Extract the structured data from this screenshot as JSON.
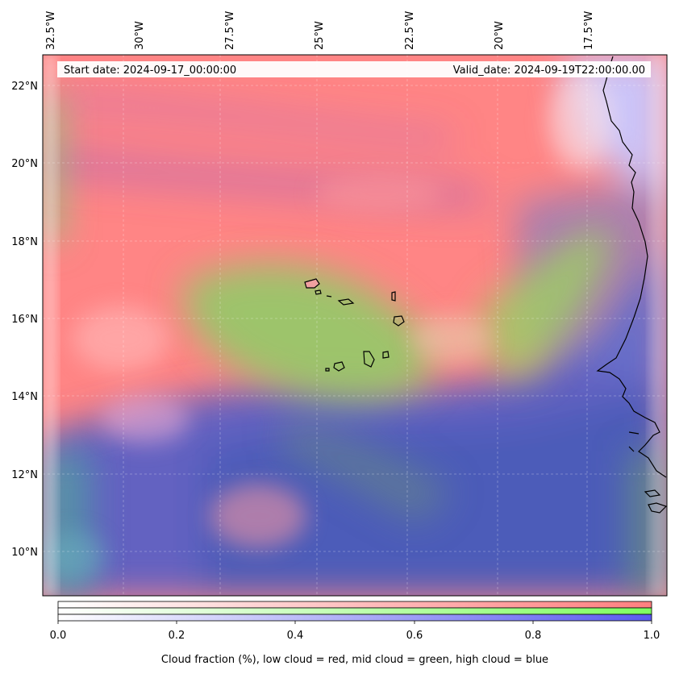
{
  "map": {
    "start_date": "Start date: 2024-09-17_00:00:00",
    "valid_date": "Valid_date: 2024-09-19T22:00:00.00",
    "lon_labels": [
      "32.5°W",
      "30°W",
      "27.5°W",
      "25°W",
      "22.5°W",
      "20°W",
      "17.5°W"
    ],
    "lat_labels": [
      "22°N",
      "20°N",
      "18°N",
      "16°N",
      "14°N",
      "12°N",
      "10°N"
    ],
    "colors": {
      "low_cloud": "#ff7f80",
      "mid_cloud": "#8fd36a",
      "high_cloud": "#4a58c6",
      "coastline": "#000000"
    }
  },
  "colorbar": {
    "ticks": [
      "0.0",
      "0.2",
      "0.4",
      "0.6",
      "0.8",
      "1.0"
    ],
    "label": "Cloud fraction (%), low cloud = red, mid cloud = green, high cloud = blue",
    "bars": [
      {
        "from": "#ffffff",
        "to": "#ff7f7f"
      },
      {
        "from": "#ffffff",
        "to": "#7fff60"
      },
      {
        "from": "#ffffff",
        "to": "#5a5af0"
      }
    ]
  }
}
